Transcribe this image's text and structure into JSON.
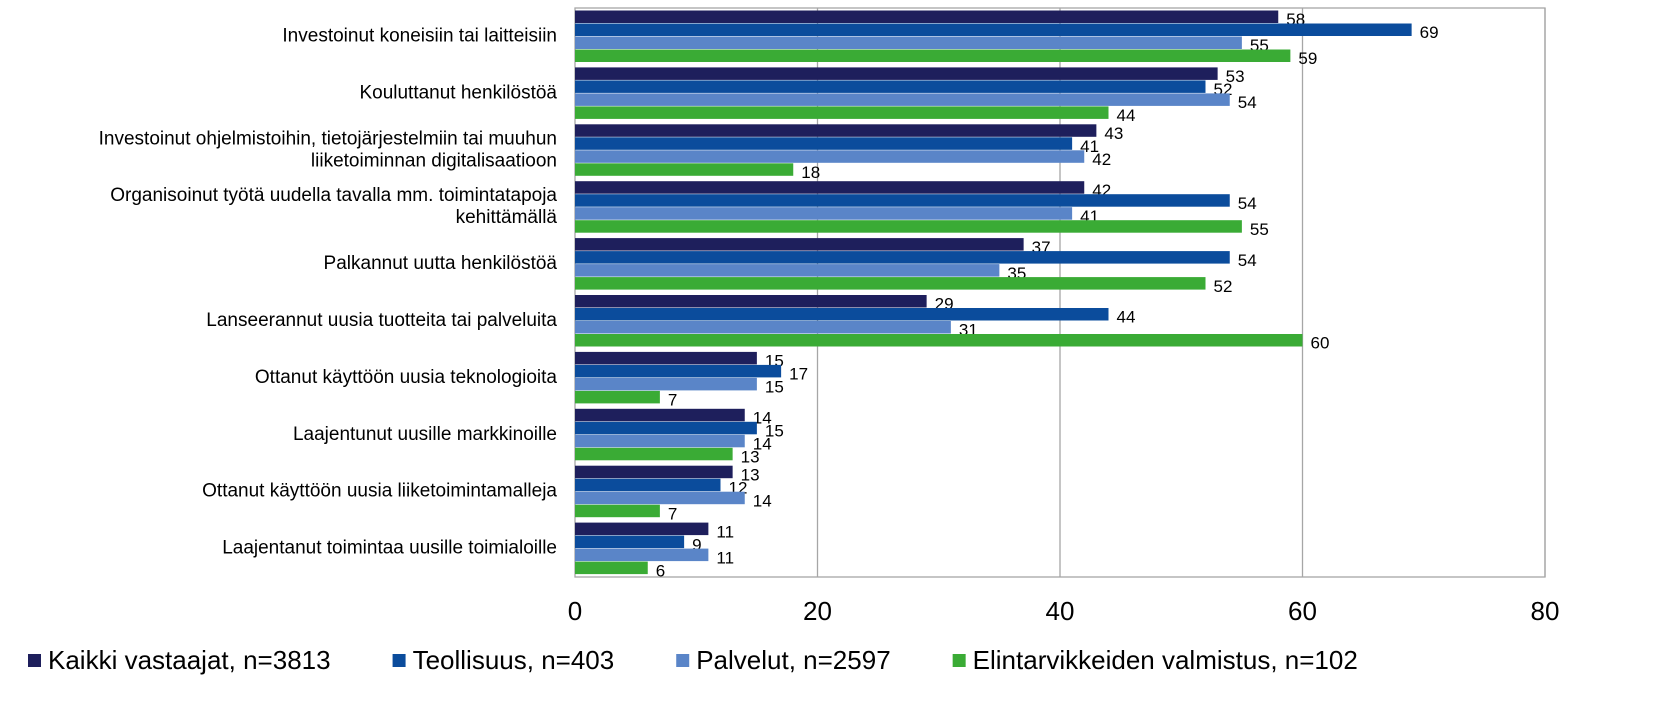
{
  "chart_data": {
    "type": "hbar",
    "categories": [
      "Investoinut koneisiin tai laitteisiin",
      "Kouluttanut henkilöstöä",
      "Investoinut ohjelmistoihin, tietojärjestelmiin tai muuhun\nliiketoiminnan digitalisaatioon",
      "Organisoinut työtä uudella tavalla mm. toimintatapoja\nkehittämällä",
      "Palkannut uutta henkilöstöä",
      "Lanseerannut uusia tuotteita tai palveluita",
      "Ottanut käyttöön uusia teknologioita",
      "Laajentunut uusille markkinoille",
      "Ottanut käyttöön uusia liiketoimintamalleja",
      "Laajentanut toimintaa uusille toimialoille"
    ],
    "series": [
      {
        "name": "Kaikki vastaajat, n=3813",
        "color": "#1e1f5c",
        "values": [
          58,
          53,
          43,
          42,
          37,
          29,
          15,
          14,
          13,
          11
        ]
      },
      {
        "name": "Teollisuus, n=403",
        "color": "#0b4c9c",
        "values": [
          69,
          52,
          41,
          54,
          54,
          44,
          17,
          15,
          12,
          9
        ]
      },
      {
        "name": "Palvelut, n=2597",
        "color": "#5a85c8",
        "values": [
          55,
          54,
          42,
          41,
          35,
          31,
          15,
          14,
          14,
          11
        ]
      },
      {
        "name": "Elintarvikkeiden valmistus, n=102",
        "color": "#3aab35",
        "values": [
          59,
          44,
          18,
          55,
          52,
          60,
          7,
          13,
          7,
          6
        ]
      }
    ],
    "xlim": [
      0,
      80
    ],
    "xticks": [
      0,
      20,
      40,
      60,
      80
    ],
    "grid": true,
    "legend": "bottom"
  }
}
